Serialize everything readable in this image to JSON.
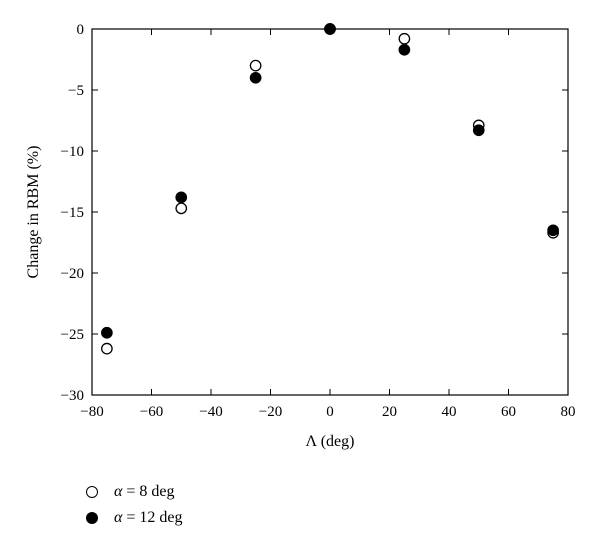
{
  "chart_data": {
    "type": "scatter",
    "title": "",
    "xlabel": "Λ (deg)",
    "ylabel": "Change in RBM (%)",
    "xlim": [
      -80,
      80
    ],
    "ylim": [
      -30,
      0
    ],
    "xticks": [
      -80,
      -60,
      -40,
      -20,
      0,
      20,
      40,
      60,
      80
    ],
    "yticks": [
      0,
      -5,
      -10,
      -15,
      -20,
      -25,
      -30
    ],
    "xtick_labels": [
      "−80",
      "−60",
      "−40",
      "−20",
      "0",
      "20",
      "40",
      "60",
      "80"
    ],
    "ytick_labels": [
      "0",
      "−5",
      "−10",
      "−15",
      "−20",
      "−25",
      "−30"
    ],
    "grid": false,
    "legend_position": "below",
    "series": [
      {
        "name": "α = 8 deg",
        "symbol": "α",
        "value_text": " = 8 deg",
        "marker": "open-circle",
        "x": [
          -75,
          -50,
          -25,
          0,
          25,
          50,
          75
        ],
        "y": [
          -26.2,
          -14.7,
          -3.0,
          0.0,
          -0.8,
          -7.9,
          -16.7
        ]
      },
      {
        "name": "α = 12 deg",
        "symbol": "α",
        "value_text": " = 12 deg",
        "marker": "filled-circle",
        "x": [
          -75,
          -50,
          -25,
          0,
          25,
          50,
          75
        ],
        "y": [
          -24.9,
          -13.8,
          -4.0,
          0.0,
          -1.7,
          -8.3,
          -16.5
        ]
      }
    ]
  }
}
